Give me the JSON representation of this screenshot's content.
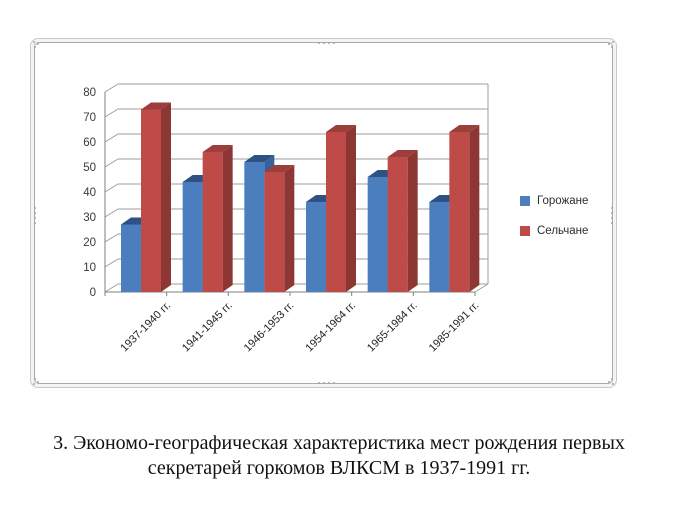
{
  "chart_data": {
    "type": "bar",
    "style": "3d-clustered-column",
    "title": "",
    "xlabel": "",
    "ylabel": "",
    "categories": [
      "1937-1940  гг.",
      "1941-1945  гг.",
      "1946-1953  гг.",
      "1954-1964  гг.",
      "1965-1984  гг.",
      "1985-1991  гг."
    ],
    "series": [
      {
        "name": "Горожане",
        "values": [
          27,
          44,
          52,
          36,
          46,
          36
        ],
        "color": "#4B7EBD",
        "color_top": "#2E5283",
        "color_side": "#35619C"
      },
      {
        "name": "Сельчане",
        "values": [
          73,
          56,
          48,
          64,
          54,
          64
        ],
        "color": "#BE4B48",
        "color_top": "#9C3E3B",
        "color_side": "#8C3734"
      }
    ],
    "ylim": [
      0,
      80
    ],
    "yticks": [
      0,
      10,
      20,
      30,
      40,
      50,
      60,
      70,
      80
    ],
    "grid": true,
    "legend_position": "right"
  },
  "caption": {
    "line1": "3. Экономо-географическая характеристика мест рождения первых",
    "line2": "секретарей горкомов ВЛКСМ в 1937-1991 гг."
  },
  "colors": {
    "gridline": "#9d9d9d",
    "axis": "#7f7f7f",
    "tick_label": "#3a3a3a",
    "frame_border": "#a9a9a9"
  }
}
